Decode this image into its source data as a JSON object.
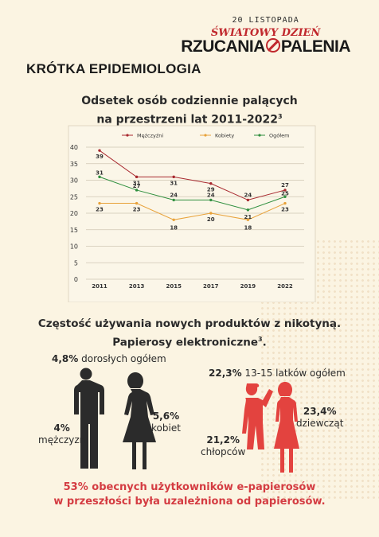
{
  "header": {
    "date": "20 LISTOPADA",
    "campaign_line1": "ŚWIATOWY DZIEŃ",
    "campaign_line2a": "RZUCANIA",
    "campaign_line2b": "PALENIA"
  },
  "section_title": "KRÓTKA EPIDEMIOLOGIA",
  "chart_data": {
    "type": "line",
    "title_line1": "Odsetek osób codziennie palących",
    "title_line2": "na przestrzeni lat 2011-2022",
    "title_sup": "3",
    "categories": [
      "2011",
      "2013",
      "2015",
      "2017",
      "2019",
      "2022"
    ],
    "ylim": [
      0,
      40
    ],
    "yticks": [
      "0",
      "5",
      "10",
      "15",
      "20",
      "25",
      "30",
      "35",
      "40"
    ],
    "grid": true,
    "legend_position": "top",
    "series": [
      {
        "name": "Mężczyźni",
        "color": "#a8282e",
        "values": [
          39,
          31,
          31,
          29,
          24,
          27
        ],
        "labels": [
          "39",
          "31",
          "31",
          "29",
          "24",
          "27"
        ]
      },
      {
        "name": "Kobiety",
        "color": "#e8a23a",
        "values": [
          23,
          23,
          18,
          20,
          18,
          23
        ],
        "labels": [
          "23",
          "23",
          "18",
          "20",
          "18",
          "23"
        ]
      },
      {
        "name": "Ogółem",
        "color": "#2f8f3e",
        "values": [
          31,
          27,
          24,
          24,
          21,
          25
        ],
        "labels": [
          "31",
          "27",
          "24",
          "24",
          "21",
          "25"
        ]
      }
    ]
  },
  "section2": {
    "title_line1": "Częstość używania nowych produktów z nikotyną.",
    "title_line2": "Papierosy elektroniczne",
    "title_sup": "3",
    "title_end": ".",
    "adults_pct": "4,8%",
    "adults_label": "dorosłych ogółem",
    "men_pct": "4%",
    "men_label": "mężczyzn",
    "women_pct": "5,6%",
    "women_label": "kobiet",
    "teens_pct": "22,3%",
    "teens_label": "13-15 latków ogółem",
    "girls_pct": "23,4%",
    "girls_label": "dziewcząt",
    "boys_pct": "21,2%",
    "boys_label": "chłopców"
  },
  "footnote": {
    "line1": "53% obecnych użytkowników e-papierosów",
    "line2": "w przeszłości była uzależniona od papierosów."
  },
  "colors": {
    "background": "#fbf4e2",
    "accent_red": "#c0282d",
    "figure_dark": "#2b2b2b",
    "figure_red": "#e3433f"
  }
}
